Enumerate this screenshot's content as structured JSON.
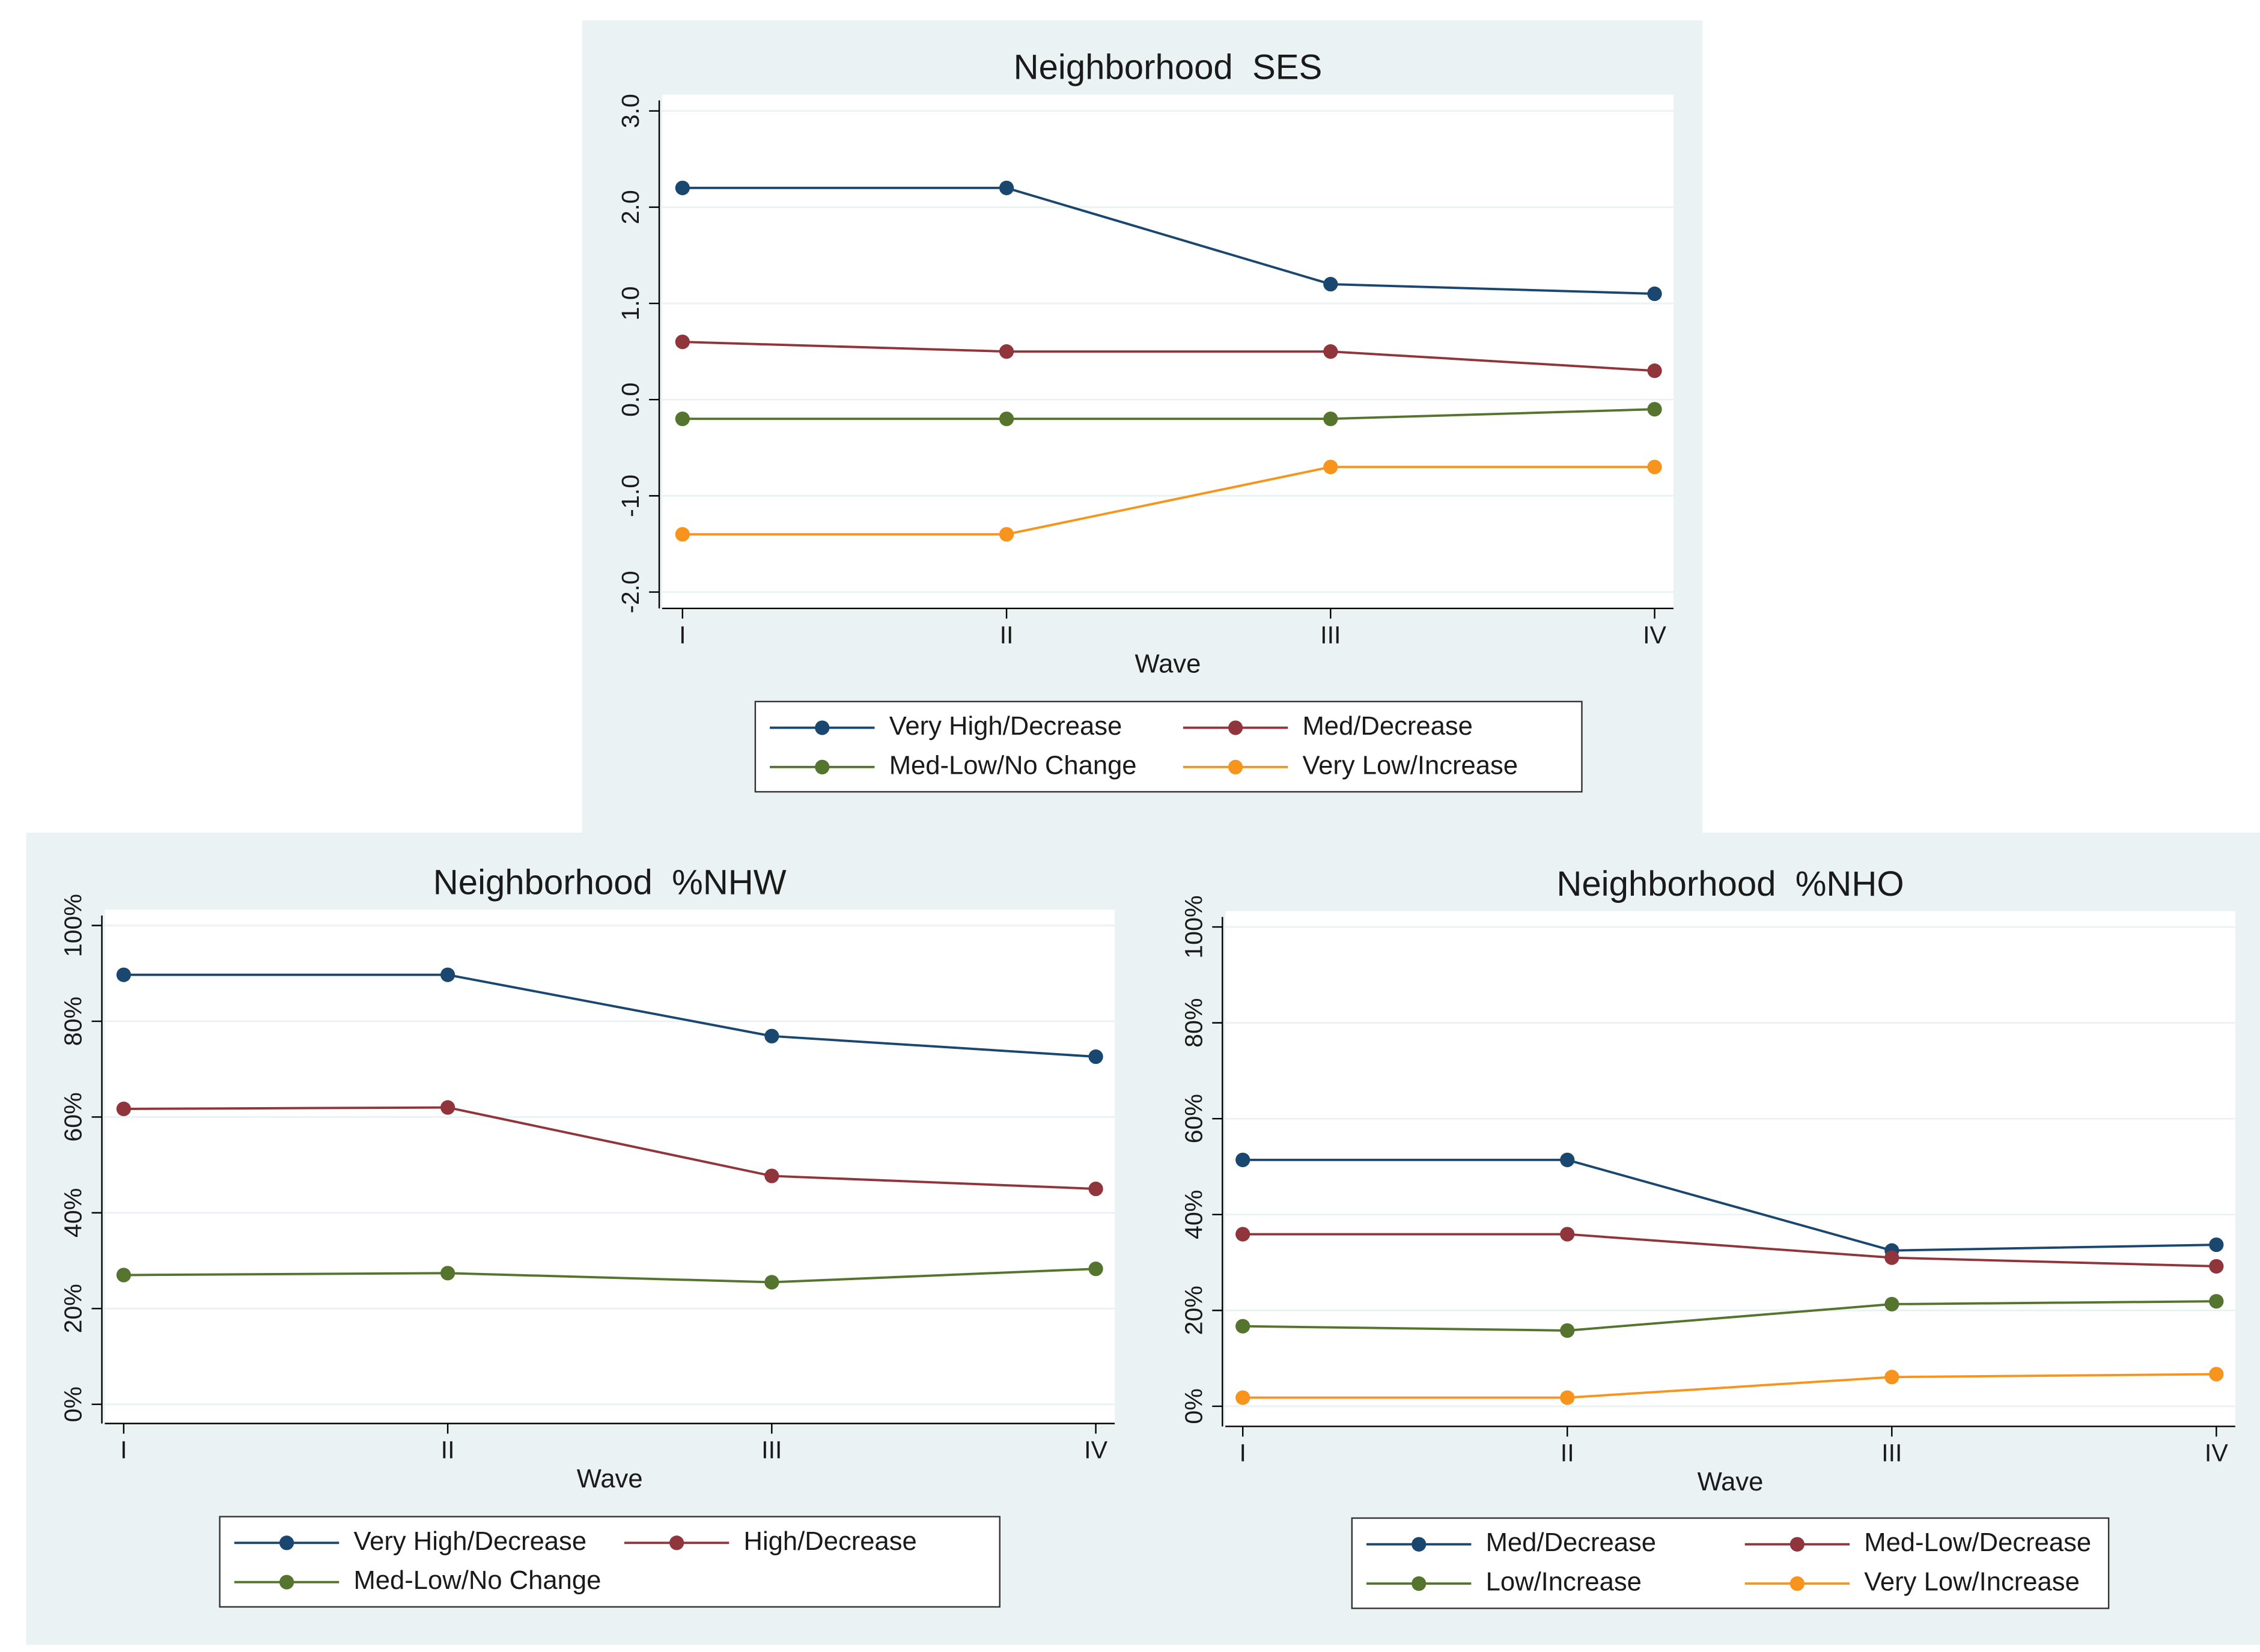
{
  "chart_data": [
    {
      "type": "line",
      "title": "Neighborhood  SES",
      "x_label": "Wave",
      "categories": [
        "I",
        "II",
        "III",
        "IV"
      ],
      "ylim": [
        -2.17,
        3.17
      ],
      "yticks": [
        {
          "value": -2,
          "label": "-2.0"
        },
        {
          "value": -1,
          "label": "-1.0"
        },
        {
          "value": 0,
          "label": "0.0"
        },
        {
          "value": 1,
          "label": "1.0"
        },
        {
          "value": 2,
          "label": "2.0"
        },
        {
          "value": 3,
          "label": "3.0"
        }
      ],
      "grid": true,
      "legend": "bottom",
      "series": [
        {
          "name": "Very High/Decrease",
          "color": "#1a476f",
          "values": [
            2.2,
            2.2,
            1.2,
            1.1
          ]
        },
        {
          "name": "Med/Decrease",
          "color": "#90353b",
          "values": [
            0.6,
            0.5,
            0.5,
            0.3
          ]
        },
        {
          "name": "Med-Low/No Change",
          "color": "#55752f",
          "values": [
            -0.2,
            -0.2,
            -0.2,
            -0.1
          ]
        },
        {
          "name": "Very Low/Increase",
          "color": "#f7941d",
          "values": [
            -1.4,
            -1.4,
            -0.7,
            -0.7
          ]
        }
      ]
    },
    {
      "type": "line",
      "title": "Neighborhood  %NHW",
      "x_label": "Wave",
      "categories": [
        "I",
        "II",
        "III",
        "IV"
      ],
      "ylim": [
        -4,
        103.3
      ],
      "yticks": [
        {
          "value": 0,
          "label": "0%"
        },
        {
          "value": 20,
          "label": "20%"
        },
        {
          "value": 40,
          "label": "40%"
        },
        {
          "value": 60,
          "label": "60%"
        },
        {
          "value": 80,
          "label": "80%"
        },
        {
          "value": 100,
          "label": "100%"
        }
      ],
      "grid": true,
      "legend": "bottom",
      "series": [
        {
          "name": "Very High/Decrease",
          "color": "#1a476f",
          "values": [
            89.7,
            89.7,
            76.9,
            72.6
          ]
        },
        {
          "name": "High/Decrease",
          "color": "#90353b",
          "values": [
            61.7,
            62,
            47.7,
            45
          ]
        },
        {
          "name": "Med-Low/No Change",
          "color": "#55752f",
          "values": [
            27,
            27.4,
            25.5,
            28.3
          ]
        }
      ]
    },
    {
      "type": "line",
      "title": "Neighborhood  %NHO",
      "x_label": "Wave",
      "categories": [
        "I",
        "II",
        "III",
        "IV"
      ],
      "ylim": [
        -4.2,
        103.3
      ],
      "yticks": [
        {
          "value": 0,
          "label": "0%"
        },
        {
          "value": 20,
          "label": "20%"
        },
        {
          "value": 40,
          "label": "40%"
        },
        {
          "value": 60,
          "label": "60%"
        },
        {
          "value": 80,
          "label": "80%"
        },
        {
          "value": 100,
          "label": "100%"
        }
      ],
      "grid": true,
      "legend": "bottom",
      "series": [
        {
          "name": "Med/Decrease",
          "color": "#1a476f",
          "values": [
            51.4,
            51.4,
            32.5,
            33.7
          ]
        },
        {
          "name": "Med-Low/Decrease",
          "color": "#90353b",
          "values": [
            35.9,
            35.9,
            31,
            29.2
          ]
        },
        {
          "name": "Low/Increase",
          "color": "#55752f",
          "values": [
            16.7,
            15.8,
            21.3,
            21.9
          ]
        },
        {
          "name": "Very Low/Increase",
          "color": "#f7941d",
          "values": [
            1.8,
            1.8,
            6.1,
            6.7
          ]
        }
      ]
    }
  ]
}
